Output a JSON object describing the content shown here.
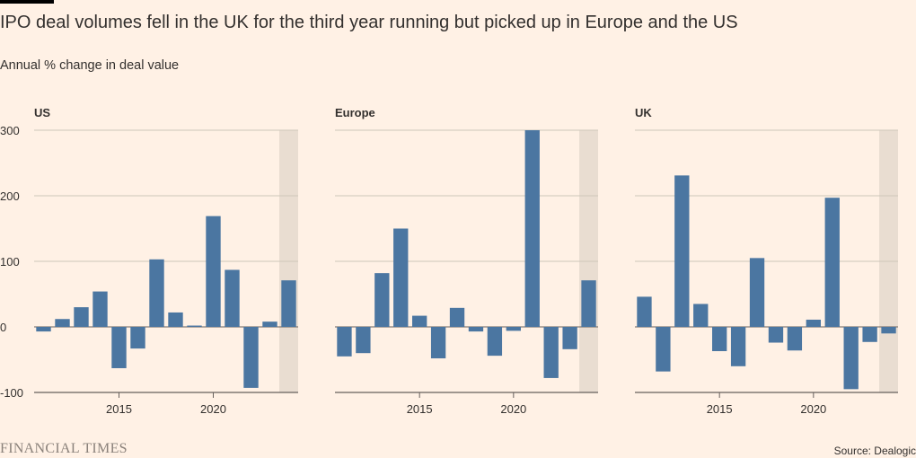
{
  "title": "IPO deal volumes fell in the UK for the third year running but picked up in Europe and the US",
  "subtitle": "Annual % change in deal value",
  "brand": "FINANCIAL TIMES",
  "source": "Source: Dealogic",
  "colors": {
    "bar": "#4b76a1",
    "highlight": "#e9ddd1",
    "grid": "#cec6b9",
    "axis": "#66605c",
    "background": "#fff1e5"
  },
  "chart_data": [
    {
      "type": "bar",
      "title": "US",
      "x": [
        2011,
        2012,
        2013,
        2014,
        2015,
        2016,
        2017,
        2018,
        2019,
        2020,
        2021,
        2022,
        2023,
        2024
      ],
      "values": [
        -7,
        12,
        30,
        54,
        -63,
        -33,
        103,
        22,
        2,
        169,
        87,
        -93,
        8,
        71
      ],
      "highlight_x": 2024,
      "ylim": [
        -100,
        300
      ],
      "yticks": [
        300,
        200,
        100,
        0,
        -100
      ],
      "xticks": [
        2015,
        2020
      ]
    },
    {
      "type": "bar",
      "title": "Europe",
      "x": [
        2011,
        2012,
        2013,
        2014,
        2015,
        2016,
        2017,
        2018,
        2019,
        2020,
        2021,
        2022,
        2023,
        2024
      ],
      "values": [
        -45,
        -40,
        82,
        150,
        17,
        -48,
        29,
        -7,
        -44,
        -6,
        300,
        -78,
        -34,
        71
      ],
      "highlight_x": 2024,
      "ylim": [
        -100,
        300
      ],
      "yticks": [
        300,
        200,
        100,
        0,
        -100
      ],
      "xticks": [
        2015,
        2020
      ]
    },
    {
      "type": "bar",
      "title": "UK",
      "x": [
        2011,
        2012,
        2013,
        2014,
        2015,
        2016,
        2017,
        2018,
        2019,
        2020,
        2021,
        2022,
        2023,
        2024
      ],
      "values": [
        46,
        -68,
        231,
        35,
        -37,
        -60,
        105,
        -24,
        -36,
        11,
        197,
        -95,
        -23,
        -10
      ],
      "highlight_x": 2024,
      "ylim": [
        -100,
        300
      ],
      "yticks": [
        300,
        200,
        100,
        0,
        -100
      ],
      "xticks": [
        2015,
        2020
      ]
    }
  ]
}
